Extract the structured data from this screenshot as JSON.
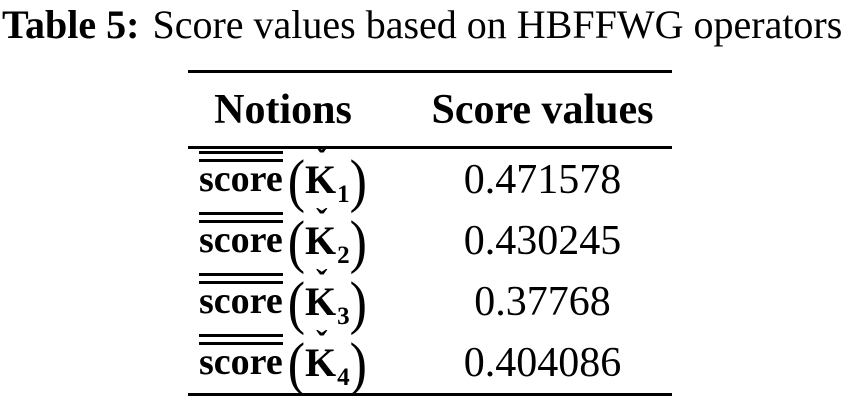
{
  "caption": {
    "label": "Table 5:",
    "text": "Score values based on HBFFWG operators"
  },
  "table": {
    "header": {
      "notions": "Notions",
      "score_values": "Score values"
    },
    "notation": {
      "score_word": "score",
      "accent": "ˇ",
      "symbol": "K",
      "lparen": "(",
      "rparen": ")"
    },
    "rows": [
      {
        "subscript": "1",
        "value": "0.471578"
      },
      {
        "subscript": "2",
        "value": "0.430245"
      },
      {
        "subscript": "3",
        "value": "0.37768"
      },
      {
        "subscript": "4",
        "value": "0.404086"
      }
    ]
  },
  "colors": {
    "background": "#ffffff",
    "text": "#000000",
    "rule": "#000000"
  },
  "chart_data": {
    "type": "table",
    "title": "Table 5: Score values based on HBFFWG operators",
    "columns": [
      "Notions",
      "Score values"
    ],
    "rows": [
      [
        "score(Ǩ1)",
        0.471578
      ],
      [
        "score(Ǩ2)",
        0.430245
      ],
      [
        "score(Ǩ3)",
        0.37768
      ],
      [
        "score(Ǩ4)",
        0.404086
      ]
    ]
  }
}
